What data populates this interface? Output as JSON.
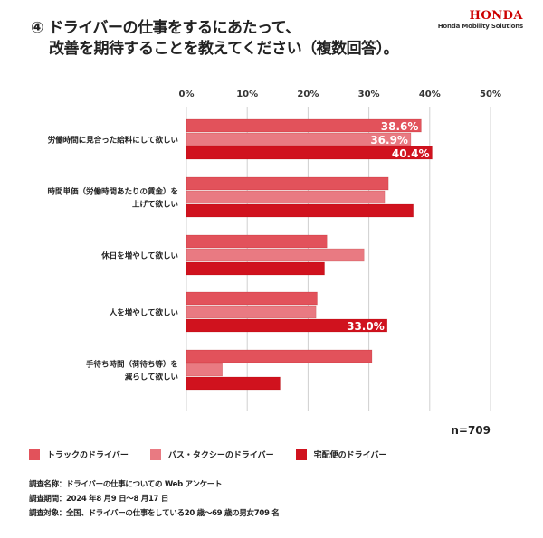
{
  "title": {
    "line1": "④ ドライバーの仕事をするにあたって、",
    "line2": "改善を期待することを教えてください（複数回答）。"
  },
  "logo": {
    "brand": "HONDA",
    "sub": "Honda Mobility Solutions"
  },
  "colors": {
    "truck": "#e2525b",
    "bus": "#e97a82",
    "delivery": "#d0121e",
    "grid": "#d0d0d0"
  },
  "chart_data": {
    "type": "bar",
    "orientation": "horizontal",
    "categories": [
      [
        "労働時間に見合った給料にして欲しい"
      ],
      [
        "時間単価（労働時間あたりの賃金）を",
        "上げて欲しい"
      ],
      [
        "休日を増やして欲しい"
      ],
      [
        "人を増やして欲しい"
      ],
      [
        "手待ち時間（荷待ち等）を",
        "減らして欲しい"
      ]
    ],
    "series": [
      {
        "name": "トラックのドライバー",
        "values": [
          38.6,
          33.2,
          23.1,
          21.5,
          30.5
        ],
        "labels": [
          "38.6%",
          "",
          "",
          "",
          ""
        ]
      },
      {
        "name": "バス・タクシーのドライバー",
        "values": [
          36.9,
          32.6,
          29.2,
          21.3,
          5.9
        ],
        "labels": [
          "36.9%",
          "",
          "",
          "",
          ""
        ]
      },
      {
        "name": "宅配便のドライバー",
        "values": [
          40.4,
          37.3,
          22.7,
          33.0,
          15.4
        ],
        "labels": [
          "40.4%",
          "",
          "",
          "33.0%",
          ""
        ]
      }
    ],
    "xlim": [
      0,
      50
    ],
    "xticks": [
      "0%",
      "10%",
      "20%",
      "30%",
      "40%",
      "50%"
    ],
    "grid": true,
    "legend": "bottom"
  },
  "n_label": "n=709",
  "footer": [
    "調査名称：ドライバーの仕事についての Web アンケート",
    "調査期間：2024 年8 月9 日〜8 月17 日",
    "調査対象：全国、ドライバーの仕事をしている20 歳〜69 歳の男女709 名"
  ]
}
